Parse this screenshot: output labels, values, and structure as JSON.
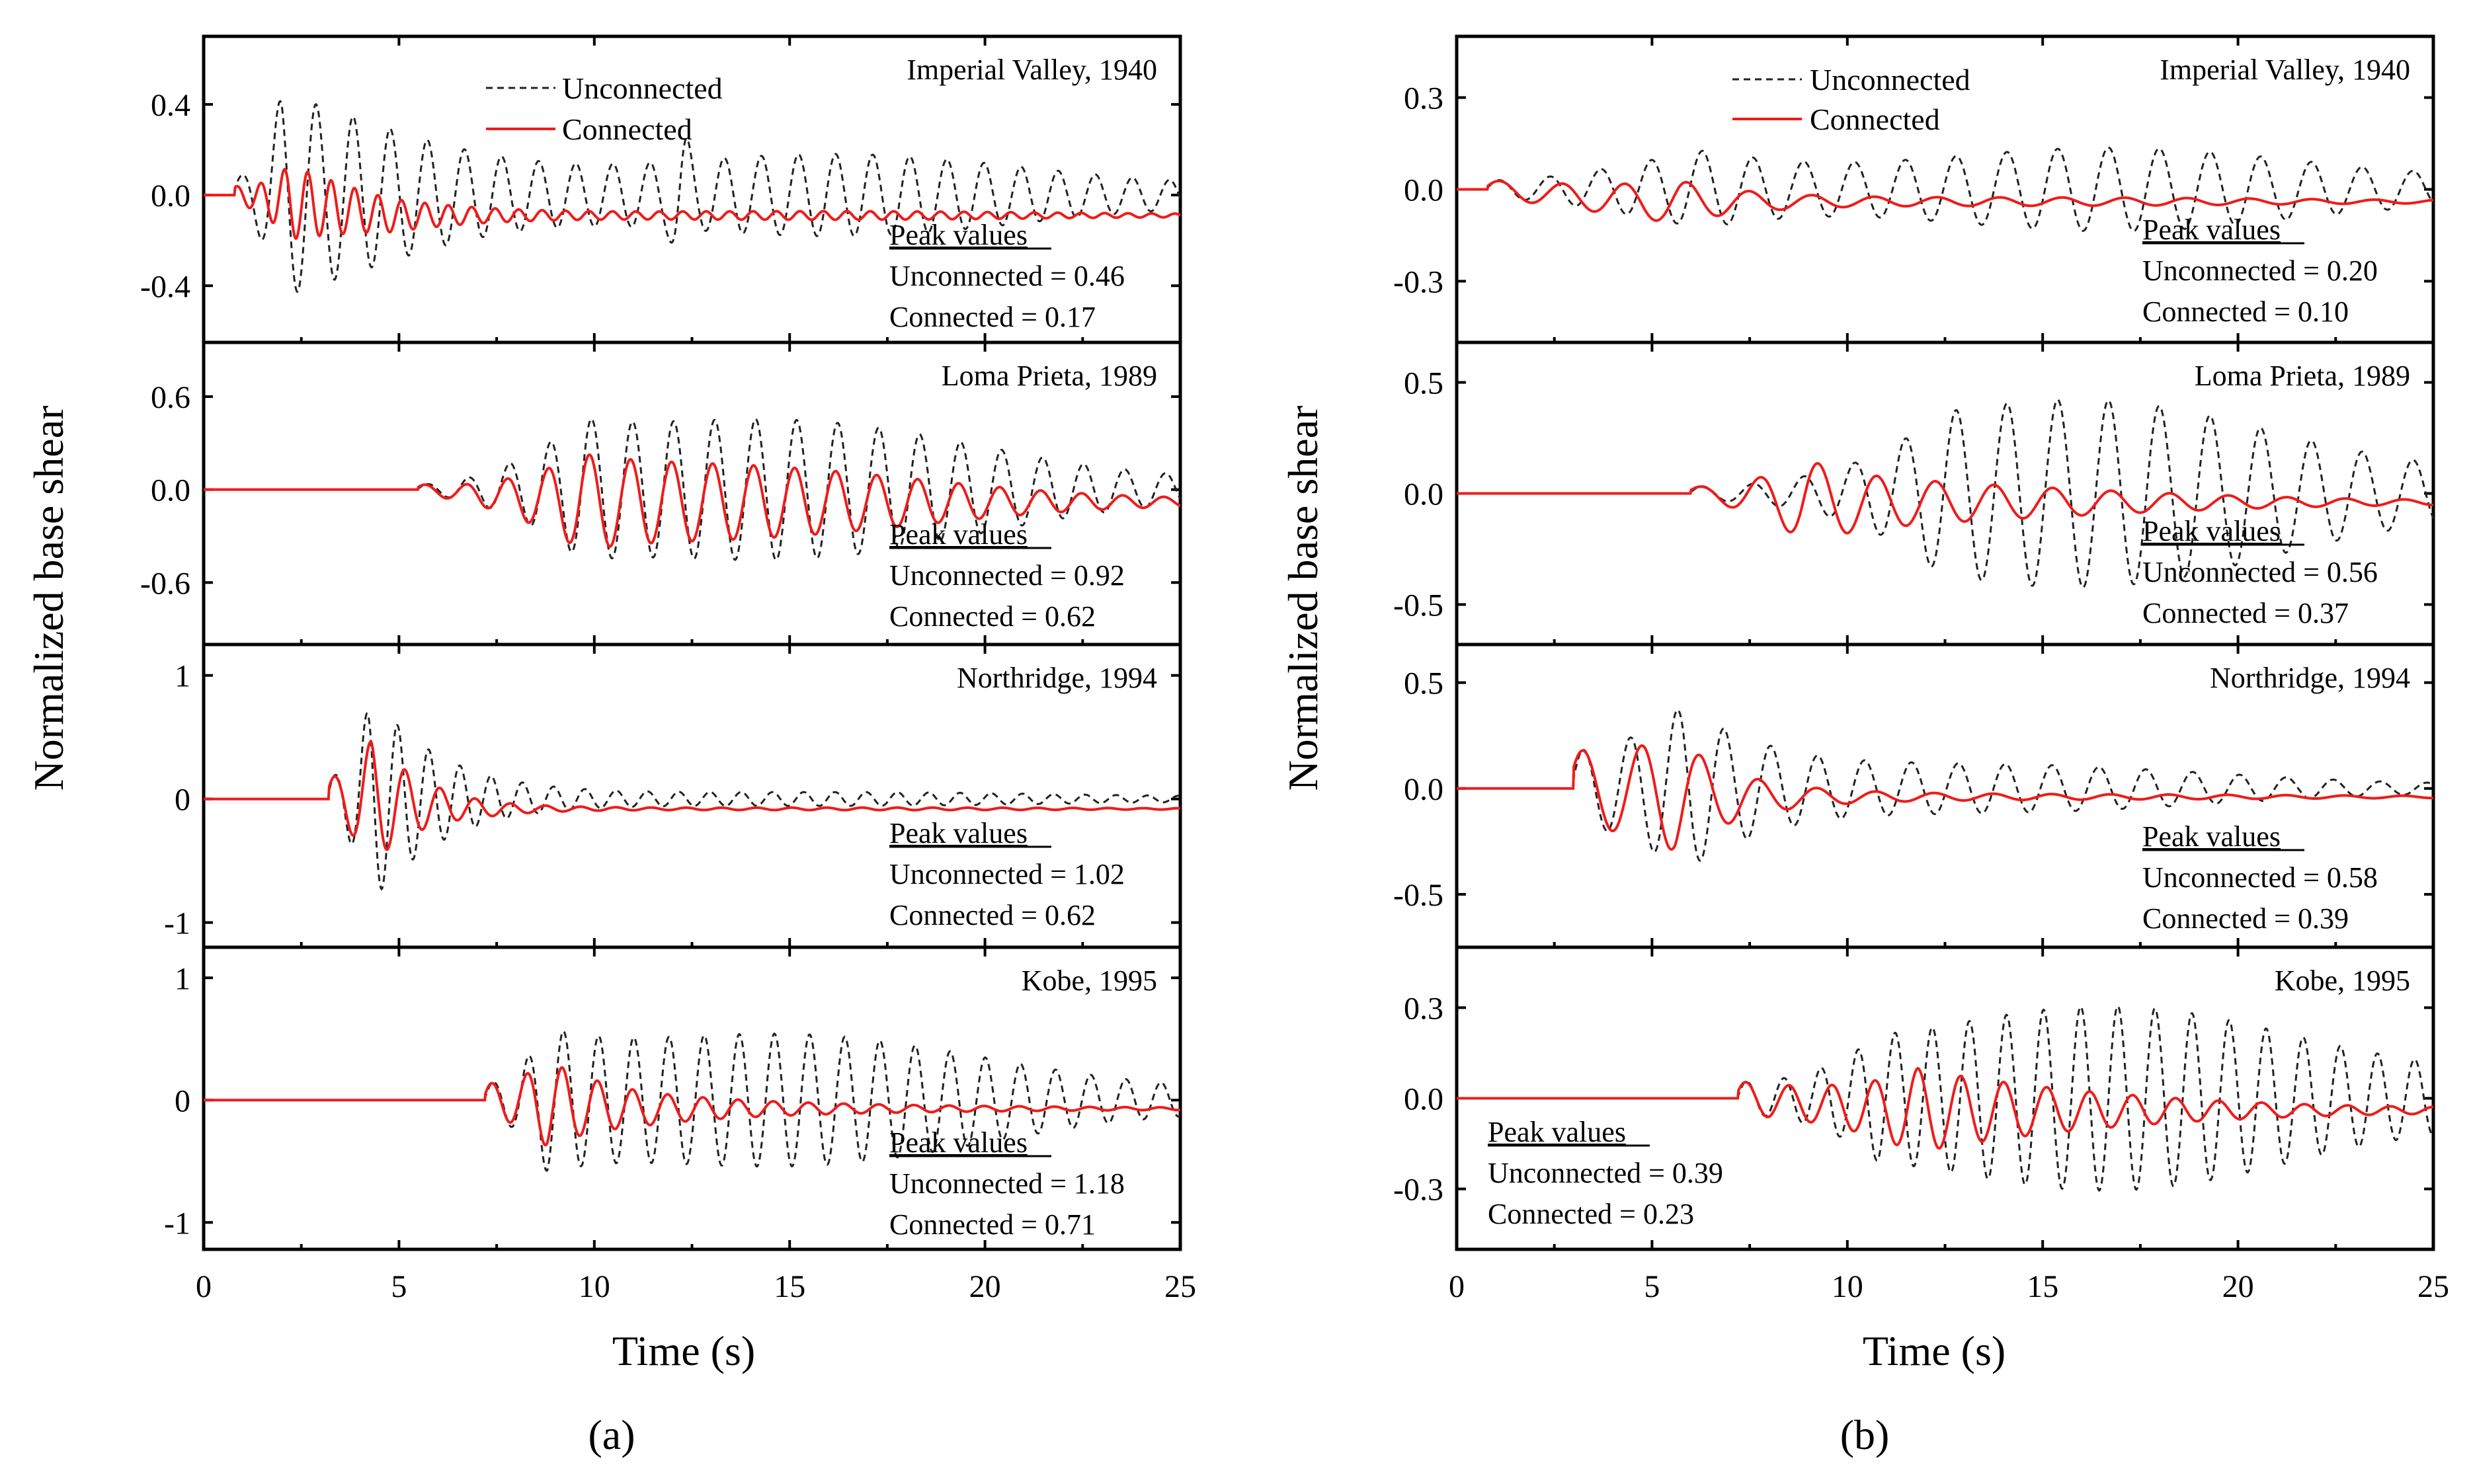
{
  "figure": {
    "y_axis_title": "Normalized base shear",
    "x_axis_title": "Time (s)",
    "panel_labels": [
      "(a)",
      "(b)"
    ],
    "legend": {
      "unconnected": "Unconnected",
      "connected": "Connected"
    },
    "peak_heading": "Peak values",
    "colors": {
      "unconnected": "#222222",
      "connected": "#ee1c1c"
    }
  },
  "chart_data": [
    {
      "type": "line",
      "panel": "(a)",
      "xlim": [
        0,
        25
      ],
      "xticks": [
        0,
        5,
        10,
        15,
        20,
        25
      ],
      "subplots": [
        {
          "title": "Imperial Valley, 1940",
          "ylim": [
            -0.65,
            0.7
          ],
          "yticks": [
            -0.4,
            0.0,
            0.4
          ],
          "ytick_labels": [
            "-0.4",
            "0.0",
            "0.4"
          ],
          "peak": {
            "unconnected": "Unconnected = 0.46",
            "connected": "Connected = 0.17"
          },
          "unconnected_series": {
            "start": 0.8,
            "end": 25,
            "amp_start": 0.08,
            "ramp_end": 2.0,
            "amp_peak": 0.46,
            "decay": 0.08,
            "period": 0.95,
            "phase": 0.4,
            "tail_amp": 0.06,
            "drift": 0.0,
            "hump_t": 12.2,
            "hump_a": 0.18
          },
          "connected_series": {
            "start": 0.8,
            "end": 25,
            "amp_start": 0.04,
            "ramp_end": 2.2,
            "amp_peak": 0.17,
            "decay": 0.25,
            "period": 0.6,
            "phase": 0.9,
            "tail_amp": 0.015,
            "drift": -0.09
          }
        },
        {
          "title": "Loma Prieta, 1989",
          "ylim": [
            -1.0,
            0.95
          ],
          "yticks": [
            -0.6,
            0.0,
            0.6
          ],
          "ytick_labels": [
            "-0.6",
            "0.0",
            "0.6"
          ],
          "peak": {
            "unconnected": "Unconnected = 0.92",
            "connected": "Connected = 0.62"
          },
          "unconnected_series": {
            "start": 5.5,
            "end": 25,
            "amp_start": 0.05,
            "ramp_end": 9.7,
            "amp_peak": 0.92,
            "decay": 0.12,
            "period": 1.05,
            "phase": 0.2,
            "tail_amp": 0.05,
            "drift": 0.0
          },
          "connected_series": {
            "start": 5.5,
            "end": 25,
            "amp_start": 0.05,
            "ramp_end": 9.7,
            "amp_peak": 0.62,
            "decay": 0.18,
            "period": 1.05,
            "phase": 0.5,
            "tail_amp": 0.02,
            "drift": -0.08
          }
        },
        {
          "title": "Northridge, 1994",
          "ylim": [
            -1.2,
            1.25
          ],
          "yticks": [
            -1,
            0,
            1
          ],
          "ytick_labels": [
            "-1",
            "0",
            "1"
          ],
          "peak": {
            "unconnected": "Unconnected = 1.02",
            "connected": "Connected = 0.62"
          },
          "unconnected_series": {
            "start": 3.2,
            "end": 25,
            "amp_start": 0.2,
            "ramp_end": 4.3,
            "amp_peak": 1.02,
            "decay": 0.4,
            "period": 0.8,
            "phase": 0.3,
            "tail_amp": 0.05,
            "drift": 0.0
          },
          "connected_series": {
            "start": 3.2,
            "end": 25,
            "amp_start": 0.2,
            "ramp_end": 4.3,
            "amp_peak": 0.62,
            "decay": 0.6,
            "period": 0.9,
            "phase": 0.5,
            "tail_amp": 0.01,
            "drift": -0.08
          }
        },
        {
          "title": "Kobe, 1995",
          "ylim": [
            -1.22,
            1.25
          ],
          "yticks": [
            -1,
            0,
            1
          ],
          "ytick_labels": [
            "-1",
            "0",
            "1"
          ],
          "peak": {
            "unconnected": "Unconnected = 1.18",
            "connected": "Connected = 0.71"
          },
          "unconnected_series": {
            "start": 7.2,
            "end": 25,
            "amp_start": 0.25,
            "ramp_end": 8.8,
            "amp_peak": 1.18,
            "decay": 0.12,
            "period": 0.9,
            "phase": 0.1,
            "tail_amp": 0.1,
            "drift": 0.0
          },
          "connected_series": {
            "start": 7.2,
            "end": 25,
            "amp_start": 0.25,
            "ramp_end": 8.8,
            "amp_peak": 0.71,
            "decay": 0.45,
            "period": 0.9,
            "phase": 0.3,
            "tail_amp": 0.02,
            "drift": -0.07
          }
        }
      ]
    },
    {
      "type": "line",
      "panel": "(b)",
      "xlim": [
        0,
        25
      ],
      "xticks": [
        0,
        5,
        10,
        15,
        20,
        25
      ],
      "subplots": [
        {
          "title": "Imperial Valley, 1940",
          "ylim": [
            -0.5,
            0.5
          ],
          "yticks": [
            -0.3,
            0.0,
            0.3
          ],
          "ytick_labels": [
            "-0.3",
            "0.0",
            "0.3"
          ],
          "peak": {
            "unconnected": "Unconnected = 0.20",
            "connected": "Connected = 0.10"
          },
          "unconnected_series": {
            "start": 0.8,
            "end": 25,
            "amp_start": 0.03,
            "ramp_end": 6.3,
            "amp_peak": 0.2,
            "decay": 0.05,
            "period": 1.3,
            "phase": 0.2,
            "tail_amp": 0.05,
            "drift": 0.0
          },
          "connected_series": {
            "start": 0.8,
            "end": 25,
            "amp_start": 0.03,
            "ramp_end": 5.7,
            "amp_peak": 0.1,
            "decay": 0.3,
            "period": 1.6,
            "phase": 0.4,
            "tail_amp": 0.01,
            "drift": -0.04
          }
        },
        {
          "title": "Loma Prieta, 1989",
          "ylim": [
            -0.68,
            0.68
          ],
          "yticks": [
            -0.5,
            0.0,
            0.5
          ],
          "ytick_labels": [
            "-0.5",
            "0.0",
            "0.5"
          ],
          "peak": {
            "unconnected": "Unconnected = 0.56",
            "connected": "Connected = 0.37"
          },
          "unconnected_series": {
            "start": 6.0,
            "end": 25,
            "amp_start": 0.05,
            "ramp_end": 12.4,
            "amp_peak": 0.56,
            "decay": 0.08,
            "period": 1.3,
            "phase": 0.2,
            "tail_amp": 0.1,
            "drift": 0.0
          },
          "connected_series": {
            "start": 6.0,
            "end": 25,
            "amp_start": 0.05,
            "ramp_end": 8.9,
            "amp_peak": 0.37,
            "decay": 0.3,
            "period": 1.5,
            "phase": 0.5,
            "tail_amp": 0.02,
            "drift": -0.04
          }
        },
        {
          "title": "Northridge, 1994",
          "ylim": [
            -0.75,
            0.68
          ],
          "yticks": [
            -0.5,
            0.0,
            0.5
          ],
          "ytick_labels": [
            "-0.5",
            "0.0",
            "0.5"
          ],
          "peak": {
            "unconnected": "Unconnected = 0.58",
            "connected": "Connected = 0.39"
          },
          "unconnected_series": {
            "start": 3.0,
            "end": 25,
            "amp_start": 0.2,
            "ramp_end": 5.8,
            "amp_peak": 0.58,
            "decay": 0.2,
            "period": 1.2,
            "phase": 0.3,
            "tail_amp": 0.04,
            "drift": 0.0
          },
          "connected_series": {
            "start": 3.0,
            "end": 25,
            "amp_start": 0.2,
            "ramp_end": 5.6,
            "amp_peak": 0.39,
            "decay": 0.45,
            "period": 1.5,
            "phase": 0.6,
            "tail_amp": 0.01,
            "drift": -0.04
          }
        },
        {
          "title": "Kobe, 1995",
          "ylim": [
            -0.5,
            0.5
          ],
          "yticks": [
            -0.3,
            0.0,
            0.3
          ],
          "ytick_labels": [
            "-0.3",
            "0.0",
            "0.3"
          ],
          "peak": {
            "unconnected": "Unconnected = 0.39",
            "connected": "Connected = 0.23"
          },
          "unconnected_series": {
            "start": 7.2,
            "end": 25,
            "amp_start": 0.1,
            "ramp_end": 10.8,
            "amp_peak": 0.39,
            "decay": 0.05,
            "period": 0.95,
            "phase": 0.1,
            "tail_amp": 0.08,
            "drift": 0.0
          },
          "connected_series": {
            "start": 7.2,
            "end": 25,
            "amp_start": 0.1,
            "ramp_end": 11.8,
            "amp_peak": 0.23,
            "decay": 0.35,
            "period": 1.1,
            "phase": 0.4,
            "tail_amp": 0.02,
            "drift": -0.04
          }
        }
      ]
    }
  ]
}
